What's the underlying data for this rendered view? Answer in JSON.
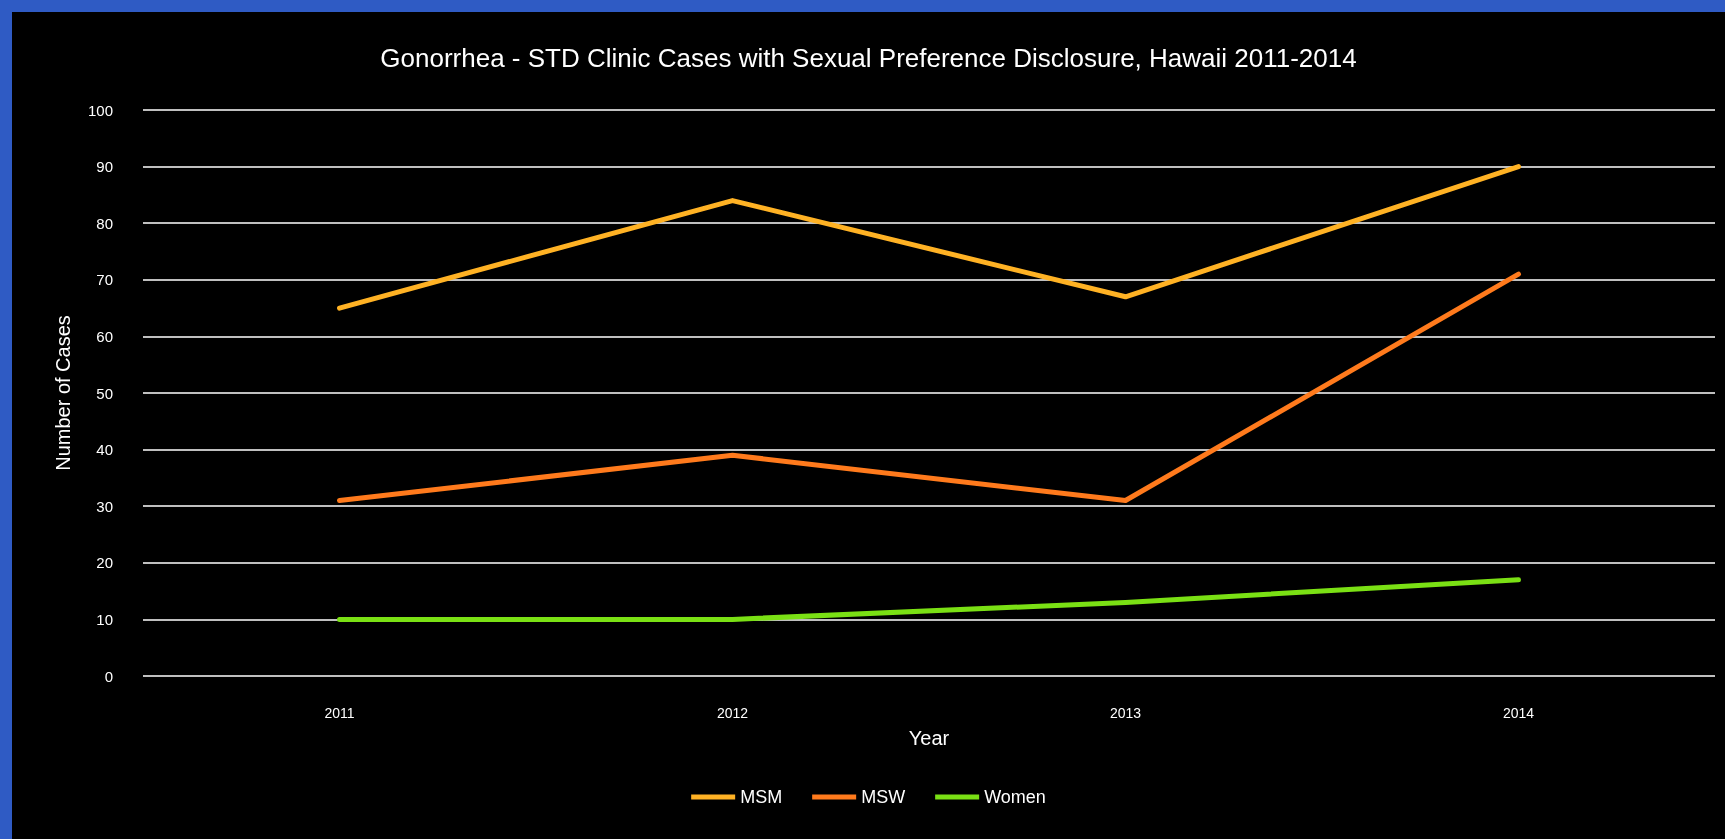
{
  "chart_data": {
    "type": "line",
    "title": "Gonorrhea - STD Clinic Cases with Sexual Preference Disclosure, Hawaii 2011-2014",
    "xlabel": "Year",
    "ylabel": "Number of Cases",
    "categories": [
      "2011",
      "2012",
      "2013",
      "2014"
    ],
    "series": [
      {
        "name": "MSM",
        "color": "#ffb224",
        "values": [
          65,
          84,
          67,
          90
        ]
      },
      {
        "name": "MSW",
        "color": "#ff7a1c",
        "values": [
          31,
          39,
          31,
          71
        ]
      },
      {
        "name": "Women",
        "color": "#7ae014",
        "values": [
          10,
          10,
          13,
          17
        ]
      }
    ],
    "ylim": [
      0,
      100
    ],
    "yticks": [
      0,
      10,
      20,
      30,
      40,
      50,
      60,
      70,
      80,
      90,
      100
    ],
    "grid": "y",
    "legend": "bottom",
    "marker": "none",
    "line_style": "solid"
  }
}
